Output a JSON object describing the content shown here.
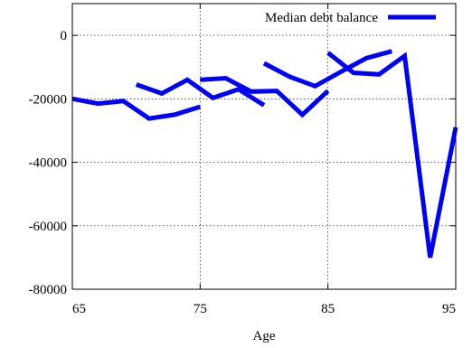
{
  "chart_data": {
    "type": "line",
    "xlabel": "Age",
    "ylabel": "",
    "xlim": [
      65,
      95
    ],
    "ylim": [
      -80000,
      10000
    ],
    "x_ticks": [
      {
        "value": 65,
        "label": "65"
      },
      {
        "value": 75,
        "label": "75"
      },
      {
        "value": 85,
        "label": "85"
      },
      {
        "value": 95,
        "label": "95"
      }
    ],
    "y_ticks": [
      {
        "value": 0,
        "label": "0"
      },
      {
        "value": -20000,
        "label": "-20000"
      },
      {
        "value": -40000,
        "label": "-40000"
      },
      {
        "value": -60000,
        "label": "-60000"
      },
      {
        "value": -80000,
        "label": "-80000"
      }
    ],
    "grid": true,
    "legend_position": "top-right",
    "series": [
      {
        "name": "Median debt balance",
        "color": "#0000ff",
        "segments": [
          [
            [
              65,
              -20000
            ],
            [
              67,
              -21500
            ],
            [
              69,
              -20700
            ],
            [
              71,
              -26200
            ],
            [
              73,
              -25000
            ],
            [
              75,
              -22500
            ]
          ],
          [
            [
              70,
              -15500
            ],
            [
              72,
              -18300
            ],
            [
              74,
              -14000
            ],
            [
              76,
              -19700
            ],
            [
              78,
              -17000
            ],
            [
              80,
              -22000
            ]
          ],
          [
            [
              75,
              -14000
            ],
            [
              77,
              -13500
            ],
            [
              79,
              -17700
            ],
            [
              81,
              -17500
            ],
            [
              83,
              -25000
            ],
            [
              85,
              -17500
            ]
          ],
          [
            [
              80,
              -8800
            ],
            [
              82,
              -13000
            ],
            [
              84,
              -16000
            ],
            [
              86,
              -11500
            ],
            [
              88,
              -7200
            ],
            [
              90,
              -5000
            ]
          ],
          [
            [
              85,
              -5500
            ],
            [
              87,
              -11800
            ],
            [
              89,
              -12300
            ],
            [
              91,
              -6500
            ],
            [
              93,
              -70000
            ],
            [
              95,
              -29000
            ]
          ]
        ]
      }
    ]
  }
}
